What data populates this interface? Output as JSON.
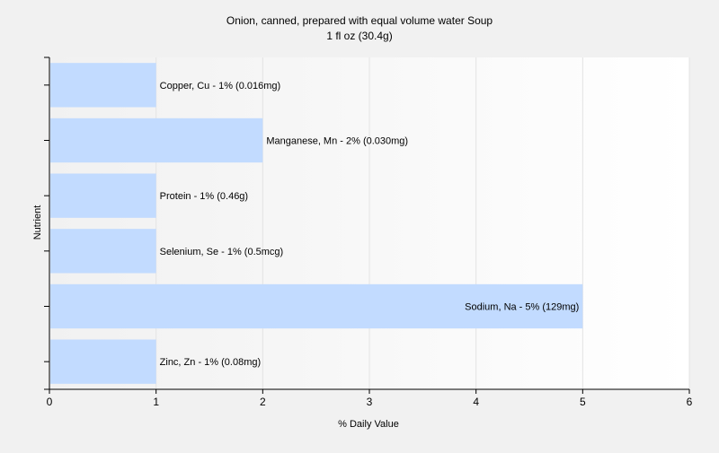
{
  "chart_data": {
    "type": "bar",
    "orientation": "horizontal",
    "title": "Onion, canned, prepared with equal volume water Soup",
    "subtitle": "1 fl oz (30.4g)",
    "xlabel": "% Daily Value",
    "ylabel": "Nutrient",
    "xlim": [
      0,
      6
    ],
    "xticks": [
      "0",
      "1",
      "2",
      "3",
      "4",
      "5",
      "6"
    ],
    "grid": true,
    "legend": "none",
    "colors": {
      "bar": "#c2dbff",
      "grid": "#e3e3e3",
      "axis": "#000000",
      "background_start": "#f1f1f1",
      "background_end": "#ffffff"
    },
    "categories": [
      "Copper, Cu",
      "Manganese, Mn",
      "Protein",
      "Selenium, Se",
      "Sodium, Na",
      "Zinc, Zn"
    ],
    "values": [
      1,
      2,
      1,
      1,
      5,
      1
    ],
    "data_labels": [
      "Copper, Cu - 1% (0.016mg)",
      "Manganese, Mn - 2% (0.030mg)",
      "Protein - 1% (0.46g)",
      "Selenium, Se - 1% (0.5mcg)",
      "Sodium, Na - 5% (129mg)",
      "Zinc, Zn - 1% (0.08mg)"
    ]
  }
}
